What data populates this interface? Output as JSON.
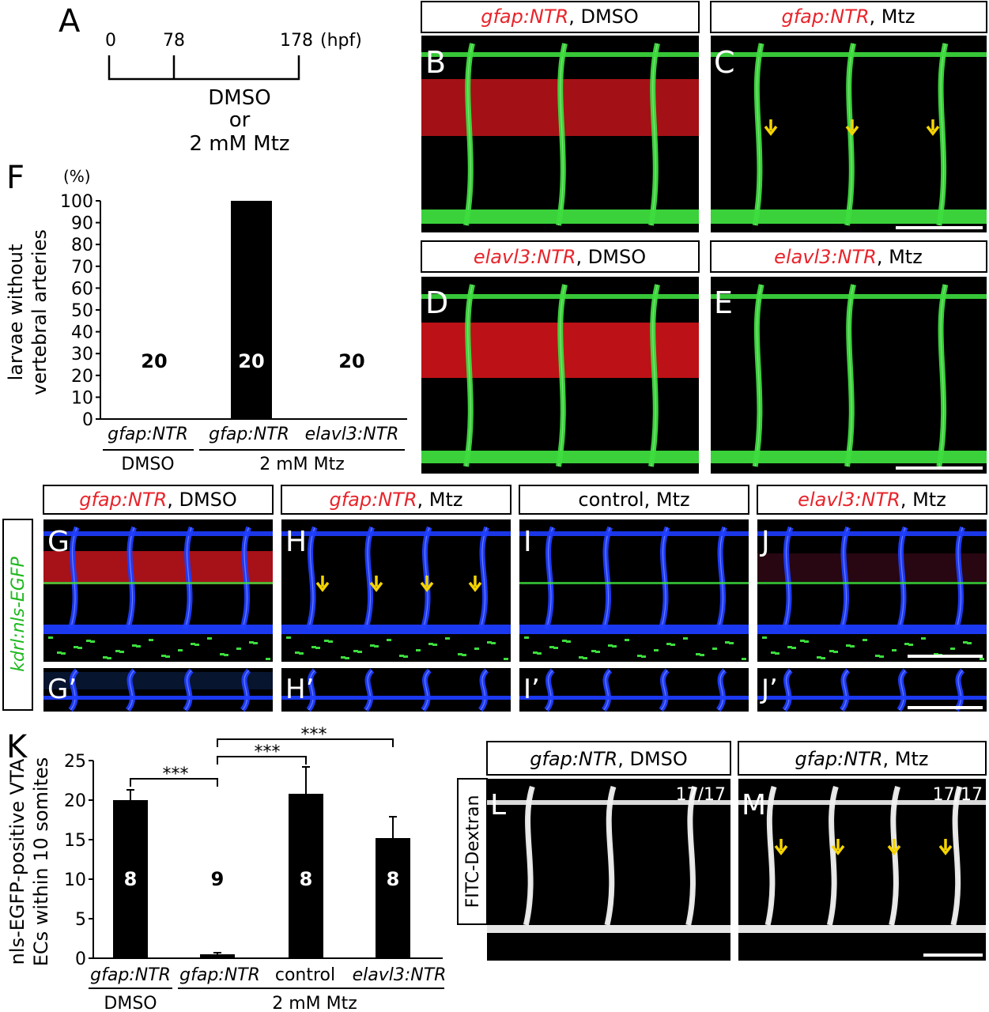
{
  "panel_letters": {
    "A": "A",
    "B": "B",
    "C": "C",
    "D": "D",
    "E": "E",
    "F": "F",
    "G": "G",
    "H": "H",
    "I": "I",
    "J": "J",
    "G2": "G’",
    "H2": "H’",
    "I2": "I’",
    "J2": "J’",
    "K": "K",
    "L": "L",
    "M": "M"
  },
  "timeline": {
    "t0": "0",
    "t1": "78",
    "t2": "178",
    "unit": "(hpf)",
    "treatment_line1": "DMSO",
    "treatment_line2": "or",
    "treatment_line3": "2 mM Mtz"
  },
  "headers": {
    "B": {
      "genotype": "gfap:NTR",
      "condition": ", DMSO"
    },
    "C": {
      "genotype": "gfap:NTR",
      "condition": ", Mtz"
    },
    "D": {
      "genotype": "elavl3:NTR",
      "condition": ", DMSO"
    },
    "E": {
      "genotype": "elavl3:NTR",
      "condition": ", Mtz"
    },
    "G": {
      "genotype": "gfap:NTR",
      "condition": ", DMSO"
    },
    "H": {
      "genotype": "gfap:NTR",
      "condition": ", Mtz"
    },
    "I": {
      "genotype": "",
      "condition": "control, Mtz"
    },
    "J": {
      "genotype": "elavl3:NTR",
      "condition": ", Mtz"
    },
    "L": {
      "genotype": "gfap:NTR",
      "condition": ", DMSO"
    },
    "M": {
      "genotype": "gfap:NTR",
      "condition": ", Mtz"
    }
  },
  "side_labels": {
    "G_row": "kdrl:nls-EGFP",
    "L_row": "FITC-Dextran"
  },
  "counts": {
    "L": "17/17",
    "M": "17/17"
  },
  "colors": {
    "red_label": "#e8242b",
    "green_vessel": "#3ddc3d",
    "blue_vessel": "#1e3cff",
    "arrow": "#f5d400",
    "bar": "#000000"
  },
  "chart_data": [
    {
      "panel": "F",
      "type": "bar",
      "unit_label": "(%)",
      "ylabel_line1": "larvae without",
      "ylabel_line2": "vertebral arteries",
      "ylim": [
        0,
        100
      ],
      "yticks": [
        "0",
        "10",
        "20",
        "30",
        "40",
        "50",
        "60",
        "70",
        "80",
        "90",
        "100"
      ],
      "categories": [
        "gfap:NTR",
        "gfap:NTR",
        "elavl3:NTR"
      ],
      "values": [
        0,
        100,
        0
      ],
      "n_labels": [
        "20",
        "20",
        "20"
      ],
      "group_labels": [
        "DMSO",
        "2 mM Mtz"
      ]
    },
    {
      "panel": "K",
      "type": "bar",
      "ylabel_line1": "nls-EGFP-positive VTA",
      "ylabel_line2": "ECs within 10 somites",
      "ylim": [
        0,
        25
      ],
      "yticks": [
        "0",
        "5",
        "10",
        "15",
        "20",
        "25"
      ],
      "categories": [
        "gfap:NTR",
        "gfap:NTR",
        "control",
        "elavl3:NTR"
      ],
      "values": [
        20,
        0.5,
        20.8,
        15.2
      ],
      "errors": [
        1.3,
        0.2,
        3.4,
        2.7
      ],
      "n_labels": [
        "8",
        "9",
        "8",
        "8"
      ],
      "significance": [
        "***",
        "***",
        "***"
      ],
      "group_labels": [
        "DMSO",
        "2 mM Mtz"
      ]
    }
  ]
}
